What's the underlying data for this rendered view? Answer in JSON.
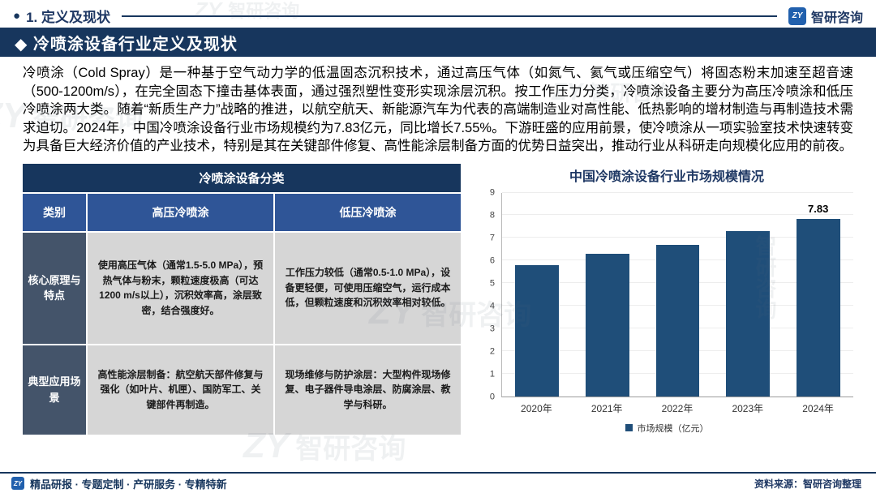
{
  "header": {
    "bullet": "●",
    "section_label": "1. 定义及现状"
  },
  "brand": {
    "glyph": "ZY",
    "name": "智研咨询"
  },
  "banner": {
    "title": "◆ 冷喷涂设备行业定义及现状"
  },
  "paragraph": "冷喷涂（Cold Spray）是一种基于空气动力学的低温固态沉积技术，通过高压气体（如氮气、氦气或压缩空气）将固态粉末加速至超音速（500-1200m/s），在完全固态下撞击基体表面，通过强烈塑性变形实现涂层沉积。按工作压力分类，冷喷涂设备主要分为高压冷喷涂和低压冷喷涂两大类。随着“新质生产力”战略的推进，以航空航天、新能源汽车为代表的高端制造业对高性能、低热影响的增材制造与再制造技术需求迫切。2024年，中国冷喷涂设备行业市场规模约为7.83亿元，同比增长7.55%。下游旺盛的应用前景，使冷喷涂从一项实验室技术快速转变为具备巨大经济价值的产业技术，特别是其在关键部件修复、高性能涂层制备方面的优势日益突出，推动行业从科研走向规模化应用的前夜。",
  "table": {
    "title": "冷喷涂设备分类",
    "col_headers": [
      "类别",
      "高压冷喷涂",
      "低压冷喷涂"
    ],
    "rows": [
      {
        "label": "核心原理与特点",
        "high": "使用高压气体（通常1.5-5.0 MPa），预热气体与粉末，颗粒速度极高（可达1200 m/s以上），沉积效率高，涂层致密，结合强度好。",
        "low": "工作压力较低（通常0.5-1.0 MPa），设备更轻便，可使用压缩空气，运行成本低，但颗粒速度和沉积效率相对较低。"
      },
      {
        "label": "典型应用场景",
        "high": "高性能涂层制备：航空航天部件修复与强化（如叶片、机匣）、国防军工、关键部件再制造。",
        "low": "现场维修与防护涂层：大型构件现场修复、电子器件导电涂层、防腐涂层、教学与科研。"
      }
    ]
  },
  "chart_data": {
    "type": "bar",
    "title": "中国冷喷涂设备行业市场规模情况",
    "categories": [
      "2020年",
      "2021年",
      "2022年",
      "2023年",
      "2024年"
    ],
    "values": [
      5.8,
      6.3,
      6.7,
      7.28,
      7.83
    ],
    "xlabel": "",
    "ylabel": "",
    "ylim": [
      0,
      9
    ],
    "yticks": [
      0,
      1,
      2,
      3,
      4,
      5,
      6,
      7,
      8,
      9
    ],
    "legend": "市场规模（亿元）",
    "legend_position": "bottom",
    "grid": true,
    "bar_color": "#1F4E79",
    "data_labels": {
      "4": "7.83"
    }
  },
  "source": "资料来源：智研咨询整理",
  "footer": {
    "text": "精品研报 · 专题定制 · 产研服务 · 专精特新"
  },
  "watermark": {
    "text": "智研咨询"
  },
  "colors": {
    "navy": "#17365D",
    "header_blue": "#2F5597",
    "label_slate": "#44546A",
    "cell_gray": "#D6D6D6",
    "bar_blue": "#1F4E79"
  }
}
